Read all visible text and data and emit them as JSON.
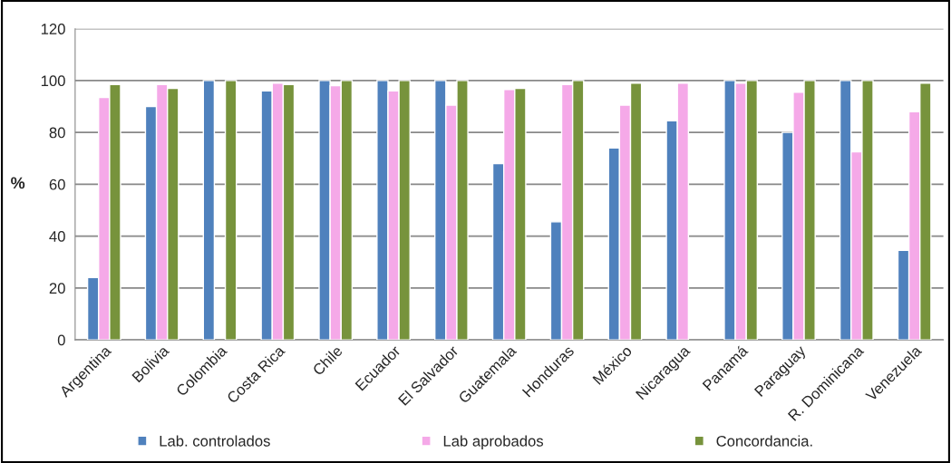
{
  "chart_data": {
    "type": "bar",
    "ylabel": "%",
    "categories": [
      "Argentina",
      "Bolivia",
      "Colombia",
      "Costa Rica",
      "Chile",
      "Ecuador",
      "El Salvador",
      "Guatemala",
      "Honduras",
      "México",
      "Nicaragua",
      "Panamá",
      "Paraguay",
      "R. Dominicana",
      "Venezuela"
    ],
    "series": [
      {
        "name": "Lab. controlados",
        "color": "#4f81bd",
        "values": [
          24,
          90,
          100,
          96,
          100,
          100,
          100,
          68,
          45.5,
          74,
          84.5,
          100,
          80,
          100,
          34.5
        ]
      },
      {
        "name": "Lab aprobados",
        "color": "#f5a9e8",
        "values": [
          93.5,
          98.5,
          null,
          99,
          98,
          96,
          90.5,
          96.5,
          98.5,
          90.5,
          99,
          99,
          95.5,
          72.5,
          88
        ]
      },
      {
        "name": "Concordancia.",
        "color": "#77933c",
        "values": [
          98.5,
          97,
          100,
          98.5,
          100,
          100,
          100,
          97,
          100,
          99,
          null,
          100,
          100,
          100,
          99
        ]
      }
    ],
    "ylim": [
      0,
      120
    ],
    "yticks": [
      0,
      20,
      40,
      60,
      80,
      100,
      120
    ],
    "grid": "y",
    "legend": "bottom"
  }
}
